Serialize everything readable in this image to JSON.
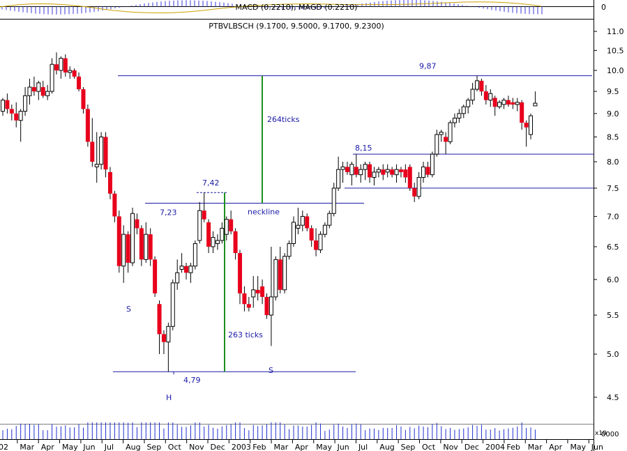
{
  "chart_data": {
    "type": "candlestick",
    "title": "PTBVLBSCH (9.1700, 9.5000, 9.1700, 9.2300)",
    "indicator_title": "MACD (0.2210), MAGD (0.2210)",
    "indicator_zero_label": "0",
    "volume_label": "x10",
    "volume_tick_label": "0000",
    "yscale": "log",
    "ylim": [
      4.35,
      11.3
    ],
    "y_ticks": [
      {
        "value": 4.5,
        "label": "4.5"
      },
      {
        "value": 5.0,
        "label": "5.0"
      },
      {
        "value": 5.5,
        "label": "5.5"
      },
      {
        "value": 6.0,
        "label": "6.0"
      },
      {
        "value": 6.5,
        "label": "6.5"
      },
      {
        "value": 7.0,
        "label": "7.0"
      },
      {
        "value": 7.5,
        "label": "7.5"
      },
      {
        "value": 8.0,
        "label": "8.0"
      },
      {
        "value": 8.5,
        "label": "8.5"
      },
      {
        "value": 9.0,
        "label": "9.0"
      },
      {
        "value": 9.5,
        "label": "9.5"
      },
      {
        "value": 10.0,
        "label": "10.0"
      },
      {
        "value": 10.5,
        "label": "10.5"
      },
      {
        "value": 11.0,
        "label": "11.0"
      }
    ],
    "x_ticks": [
      "02",
      "Mar",
      "Apr",
      "May",
      "Jun",
      "Jul",
      "Aug",
      "Sep",
      "Oct",
      "Nov",
      "Dec",
      "2003",
      "Feb",
      "Mar",
      "Apr",
      "May",
      "Jun",
      "Jul",
      "Aug",
      "Sep",
      "Oct",
      "Nov",
      "Dec",
      "2004",
      "Feb",
      "Mar",
      "Apr",
      "May",
      "Jun"
    ],
    "xlim": [
      0,
      118
    ],
    "candles": [
      {
        "i": 0,
        "o": 9.05,
        "h": 9.35,
        "l": 8.95,
        "c": 9.3
      },
      {
        "i": 1,
        "o": 9.3,
        "h": 9.45,
        "l": 9.0,
        "c": 9.1
      },
      {
        "i": 2,
        "o": 9.1,
        "h": 9.2,
        "l": 8.85,
        "c": 9.0
      },
      {
        "i": 3,
        "o": 9.0,
        "h": 9.25,
        "l": 8.7,
        "c": 8.85
      },
      {
        "i": 4,
        "o": 8.85,
        "h": 9.1,
        "l": 8.4,
        "c": 9.05
      },
      {
        "i": 5,
        "o": 9.05,
        "h": 9.6,
        "l": 8.95,
        "c": 9.4
      },
      {
        "i": 6,
        "o": 9.4,
        "h": 9.8,
        "l": 9.2,
        "c": 9.6
      },
      {
        "i": 7,
        "o": 9.6,
        "h": 9.85,
        "l": 9.4,
        "c": 9.5
      },
      {
        "i": 8,
        "o": 9.5,
        "h": 9.75,
        "l": 9.3,
        "c": 9.7
      },
      {
        "i": 9,
        "o": 9.6,
        "h": 9.75,
        "l": 9.35,
        "c": 9.4
      },
      {
        "i": 10,
        "o": 9.4,
        "h": 9.65,
        "l": 9.3,
        "c": 9.5
      },
      {
        "i": 11,
        "o": 9.5,
        "h": 10.3,
        "l": 9.45,
        "c": 10.15
      },
      {
        "i": 12,
        "o": 10.15,
        "h": 10.45,
        "l": 9.9,
        "c": 10.0
      },
      {
        "i": 13,
        "o": 10.0,
        "h": 10.35,
        "l": 9.8,
        "c": 10.3
      },
      {
        "i": 14,
        "o": 10.3,
        "h": 10.4,
        "l": 9.85,
        "c": 9.95
      },
      {
        "i": 15,
        "o": 9.95,
        "h": 10.1,
        "l": 9.8,
        "c": 10.0
      },
      {
        "i": 16,
        "o": 10.0,
        "h": 10.05,
        "l": 9.8,
        "c": 9.85
      },
      {
        "i": 17,
        "o": 9.85,
        "h": 9.95,
        "l": 9.5,
        "c": 9.55
      },
      {
        "i": 18,
        "o": 9.55,
        "h": 9.6,
        "l": 9.0,
        "c": 9.1
      },
      {
        "i": 19,
        "o": 9.1,
        "h": 9.2,
        "l": 8.3,
        "c": 8.4
      },
      {
        "i": 20,
        "o": 8.4,
        "h": 8.9,
        "l": 7.9,
        "c": 8.0
      },
      {
        "i": 21,
        "o": 7.9,
        "h": 8.6,
        "l": 7.6,
        "c": 7.95
      },
      {
        "i": 22,
        "o": 7.95,
        "h": 8.6,
        "l": 7.85,
        "c": 8.5
      },
      {
        "i": 23,
        "o": 8.5,
        "h": 8.6,
        "l": 7.7,
        "c": 7.85
      },
      {
        "i": 24,
        "o": 7.8,
        "h": 7.9,
        "l": 7.3,
        "c": 7.4
      },
      {
        "i": 25,
        "o": 7.4,
        "h": 7.45,
        "l": 6.9,
        "c": 7.0
      },
      {
        "i": 26,
        "o": 7.0,
        "h": 7.1,
        "l": 6.1,
        "c": 6.2
      },
      {
        "i": 27,
        "o": 6.2,
        "h": 6.85,
        "l": 5.95,
        "c": 6.7
      },
      {
        "i": 28,
        "o": 6.7,
        "h": 6.75,
        "l": 6.1,
        "c": 6.25
      },
      {
        "i": 29,
        "o": 6.25,
        "h": 7.15,
        "l": 6.2,
        "c": 7.05
      },
      {
        "i": 30,
        "o": 6.95,
        "h": 7.05,
        "l": 6.7,
        "c": 6.8
      },
      {
        "i": 31,
        "o": 6.8,
        "h": 6.85,
        "l": 6.2,
        "c": 6.3
      },
      {
        "i": 32,
        "o": 6.3,
        "h": 6.9,
        "l": 6.25,
        "c": 6.7
      },
      {
        "i": 33,
        "o": 6.7,
        "h": 6.8,
        "l": 6.2,
        "c": 6.3
      },
      {
        "i": 34,
        "o": 6.3,
        "h": 6.35,
        "l": 5.75,
        "c": 5.8
      },
      {
        "i": 35,
        "o": 5.65,
        "h": 5.7,
        "l": 5.0,
        "c": 5.25
      },
      {
        "i": 36,
        "o": 5.25,
        "h": 5.3,
        "l": 5.0,
        "c": 5.15
      },
      {
        "i": 37,
        "o": 5.15,
        "h": 5.4,
        "l": 4.79,
        "c": 5.35
      },
      {
        "i": 38,
        "o": 5.35,
        "h": 6.0,
        "l": 5.3,
        "c": 5.95
      },
      {
        "i": 39,
        "o": 5.95,
        "h": 6.3,
        "l": 5.85,
        "c": 6.1
      },
      {
        "i": 40,
        "o": 6.15,
        "h": 6.4,
        "l": 6.1,
        "c": 6.2
      },
      {
        "i": 41,
        "o": 6.2,
        "h": 6.25,
        "l": 6.0,
        "c": 6.1
      },
      {
        "i": 42,
        "o": 6.1,
        "h": 6.25,
        "l": 5.95,
        "c": 6.2
      },
      {
        "i": 43,
        "o": 6.2,
        "h": 6.6,
        "l": 6.15,
        "c": 6.55
      },
      {
        "i": 44,
        "o": 6.6,
        "h": 7.25,
        "l": 6.55,
        "c": 7.1
      },
      {
        "i": 45,
        "o": 7.1,
        "h": 7.42,
        "l": 6.9,
        "c": 6.95
      },
      {
        "i": 46,
        "o": 6.9,
        "h": 6.95,
        "l": 6.4,
        "c": 6.5
      },
      {
        "i": 47,
        "o": 6.5,
        "h": 6.75,
        "l": 6.4,
        "c": 6.65
      },
      {
        "i": 48,
        "o": 6.55,
        "h": 6.7,
        "l": 6.45,
        "c": 6.6
      },
      {
        "i": 49,
        "o": 6.6,
        "h": 6.9,
        "l": 6.55,
        "c": 6.8
      },
      {
        "i": 50,
        "o": 6.7,
        "h": 7.0,
        "l": 6.6,
        "c": 6.95
      },
      {
        "i": 51,
        "o": 6.95,
        "h": 7.1,
        "l": 6.7,
        "c": 6.75
      },
      {
        "i": 52,
        "o": 6.75,
        "h": 6.8,
        "l": 6.3,
        "c": 6.4
      },
      {
        "i": 53,
        "o": 6.4,
        "h": 6.45,
        "l": 5.65,
        "c": 5.8
      },
      {
        "i": 54,
        "o": 5.8,
        "h": 5.9,
        "l": 5.55,
        "c": 5.65
      },
      {
        "i": 55,
        "o": 5.65,
        "h": 5.75,
        "l": 5.55,
        "c": 5.6
      },
      {
        "i": 56,
        "o": 5.75,
        "h": 6.05,
        "l": 5.6,
        "c": 5.85
      },
      {
        "i": 57,
        "o": 5.85,
        "h": 6.05,
        "l": 5.7,
        "c": 5.8
      },
      {
        "i": 58,
        "o": 5.9,
        "h": 6.0,
        "l": 5.65,
        "c": 5.75
      },
      {
        "i": 59,
        "o": 5.75,
        "h": 5.8,
        "l": 5.45,
        "c": 5.5
      },
      {
        "i": 60,
        "o": 5.5,
        "h": 6.5,
        "l": 5.1,
        "c": 5.75
      },
      {
        "i": 61,
        "o": 5.75,
        "h": 6.35,
        "l": 5.7,
        "c": 6.3
      },
      {
        "i": 62,
        "o": 6.3,
        "h": 6.5,
        "l": 5.8,
        "c": 5.85
      },
      {
        "i": 63,
        "o": 5.85,
        "h": 6.4,
        "l": 5.8,
        "c": 6.35
      },
      {
        "i": 64,
        "o": 6.35,
        "h": 6.6,
        "l": 6.3,
        "c": 6.55
      },
      {
        "i": 65,
        "o": 6.55,
        "h": 7.0,
        "l": 6.5,
        "c": 6.9
      },
      {
        "i": 66,
        "o": 6.8,
        "h": 7.15,
        "l": 6.7,
        "c": 6.85
      },
      {
        "i": 67,
        "o": 6.85,
        "h": 7.1,
        "l": 6.75,
        "c": 7.0
      },
      {
        "i": 68,
        "o": 7.0,
        "h": 7.05,
        "l": 6.75,
        "c": 6.8
      },
      {
        "i": 69,
        "o": 6.8,
        "h": 6.85,
        "l": 6.5,
        "c": 6.6
      },
      {
        "i": 70,
        "o": 6.6,
        "h": 6.8,
        "l": 6.35,
        "c": 6.45
      },
      {
        "i": 71,
        "o": 6.45,
        "h": 6.75,
        "l": 6.4,
        "c": 6.7
      },
      {
        "i": 72,
        "o": 6.7,
        "h": 6.9,
        "l": 6.65,
        "c": 6.85
      },
      {
        "i": 73,
        "o": 6.85,
        "h": 7.1,
        "l": 6.8,
        "c": 7.05
      },
      {
        "i": 74,
        "o": 7.05,
        "h": 7.6,
        "l": 7.0,
        "c": 7.5
      },
      {
        "i": 75,
        "o": 7.5,
        "h": 8.1,
        "l": 7.45,
        "c": 7.85
      },
      {
        "i": 76,
        "o": 7.85,
        "h": 8.0,
        "l": 7.6,
        "c": 7.9
      },
      {
        "i": 77,
        "o": 7.9,
        "h": 8.0,
        "l": 7.75,
        "c": 7.8
      },
      {
        "i": 78,
        "o": 7.75,
        "h": 8.0,
        "l": 7.55,
        "c": 7.95
      },
      {
        "i": 79,
        "o": 7.9,
        "h": 8.15,
        "l": 7.7,
        "c": 7.75
      },
      {
        "i": 80,
        "o": 7.75,
        "h": 7.95,
        "l": 7.6,
        "c": 7.85
      },
      {
        "i": 81,
        "o": 7.85,
        "h": 8.0,
        "l": 7.65,
        "c": 7.95
      },
      {
        "i": 82,
        "o": 7.95,
        "h": 8.0,
        "l": 7.6,
        "c": 7.7
      },
      {
        "i": 83,
        "o": 7.7,
        "h": 7.9,
        "l": 7.55,
        "c": 7.8
      },
      {
        "i": 84,
        "o": 7.8,
        "h": 7.9,
        "l": 7.7,
        "c": 7.85
      },
      {
        "i": 85,
        "o": 7.85,
        "h": 7.95,
        "l": 7.65,
        "c": 7.75
      },
      {
        "i": 86,
        "o": 7.8,
        "h": 7.95,
        "l": 7.7,
        "c": 7.85
      },
      {
        "i": 87,
        "o": 7.85,
        "h": 7.9,
        "l": 7.7,
        "c": 7.75
      },
      {
        "i": 88,
        "o": 7.75,
        "h": 7.95,
        "l": 7.6,
        "c": 7.85
      },
      {
        "i": 89,
        "o": 7.85,
        "h": 7.9,
        "l": 7.7,
        "c": 7.8
      },
      {
        "i": 90,
        "o": 7.85,
        "h": 7.95,
        "l": 7.6,
        "c": 7.7
      },
      {
        "i": 91,
        "o": 7.9,
        "h": 7.95,
        "l": 7.45,
        "c": 7.5
      },
      {
        "i": 92,
        "o": 7.5,
        "h": 7.6,
        "l": 7.25,
        "c": 7.35
      },
      {
        "i": 93,
        "o": 7.35,
        "h": 7.8,
        "l": 7.3,
        "c": 7.7
      },
      {
        "i": 94,
        "o": 7.7,
        "h": 8.0,
        "l": 7.6,
        "c": 7.9
      },
      {
        "i": 95,
        "o": 7.9,
        "h": 8.0,
        "l": 7.7,
        "c": 7.75
      },
      {
        "i": 96,
        "o": 7.75,
        "h": 8.2,
        "l": 7.7,
        "c": 8.15
      },
      {
        "i": 97,
        "o": 8.15,
        "h": 8.65,
        "l": 8.1,
        "c": 8.55
      },
      {
        "i": 98,
        "o": 8.55,
        "h": 8.65,
        "l": 8.4,
        "c": 8.6
      },
      {
        "i": 99,
        "o": 8.5,
        "h": 8.6,
        "l": 8.15,
        "c": 8.4
      },
      {
        "i": 100,
        "o": 8.4,
        "h": 8.85,
        "l": 8.35,
        "c": 8.8
      },
      {
        "i": 101,
        "o": 8.8,
        "h": 9.0,
        "l": 8.7,
        "c": 8.9
      },
      {
        "i": 102,
        "o": 8.9,
        "h": 9.1,
        "l": 8.8,
        "c": 9.0
      },
      {
        "i": 103,
        "o": 9.0,
        "h": 9.2,
        "l": 8.9,
        "c": 9.15
      },
      {
        "i": 104,
        "o": 9.15,
        "h": 9.35,
        "l": 9.0,
        "c": 9.3
      },
      {
        "i": 105,
        "o": 9.3,
        "h": 9.7,
        "l": 9.2,
        "c": 9.55
      },
      {
        "i": 106,
        "o": 9.55,
        "h": 9.87,
        "l": 9.5,
        "c": 9.75
      },
      {
        "i": 107,
        "o": 9.75,
        "h": 9.8,
        "l": 9.4,
        "c": 9.5
      },
      {
        "i": 108,
        "o": 9.5,
        "h": 9.65,
        "l": 9.2,
        "c": 9.3
      },
      {
        "i": 109,
        "o": 9.3,
        "h": 9.55,
        "l": 9.15,
        "c": 9.45
      },
      {
        "i": 110,
        "o": 9.35,
        "h": 9.4,
        "l": 8.95,
        "c": 9.15
      },
      {
        "i": 111,
        "o": 9.15,
        "h": 9.3,
        "l": 9.1,
        "c": 9.25
      },
      {
        "i": 112,
        "o": 9.2,
        "h": 9.35,
        "l": 9.1,
        "c": 9.3
      },
      {
        "i": 113,
        "o": 9.3,
        "h": 9.4,
        "l": 9.15,
        "c": 9.2
      },
      {
        "i": 114,
        "o": 9.25,
        "h": 9.35,
        "l": 9.1,
        "c": 9.2
      },
      {
        "i": 115,
        "o": 9.2,
        "h": 9.35,
        "l": 9.05,
        "c": 9.25
      },
      {
        "i": 116,
        "o": 9.25,
        "h": 9.3,
        "l": 8.65,
        "c": 8.8
      },
      {
        "i": 117,
        "o": 8.8,
        "h": 8.85,
        "l": 8.3,
        "c": 8.7
      },
      {
        "i": 118,
        "o": 8.55,
        "h": 9.0,
        "l": 8.45,
        "c": 8.95
      }
    ],
    "last_candle": {
      "o": 9.17,
      "h": 9.5,
      "l": 9.17,
      "c": 9.23
    },
    "colors": {
      "up": "#ffffff",
      "down": "#e8001c",
      "wick": "#000000",
      "lines": "#1a1aa8",
      "target": "#1d8f1d",
      "volume": "#2030d0",
      "macd": "#3a3ad8"
    },
    "annotations": {
      "neckline": {
        "label": "neckline",
        "value": 7.23
      },
      "label_723": "7,23",
      "label_742": "7,42",
      "label_479": "4,79",
      "label_815": "8,15",
      "label_987": "9,87",
      "ticks_top": "264ticks",
      "ticks_bottom": "263 ticks",
      "left_shoulder": "S",
      "head": "H",
      "right_shoulder": "S",
      "support_low": 7.5,
      "resistance": 8.15,
      "target": 9.87,
      "low": 4.79,
      "peak": 7.42
    }
  }
}
